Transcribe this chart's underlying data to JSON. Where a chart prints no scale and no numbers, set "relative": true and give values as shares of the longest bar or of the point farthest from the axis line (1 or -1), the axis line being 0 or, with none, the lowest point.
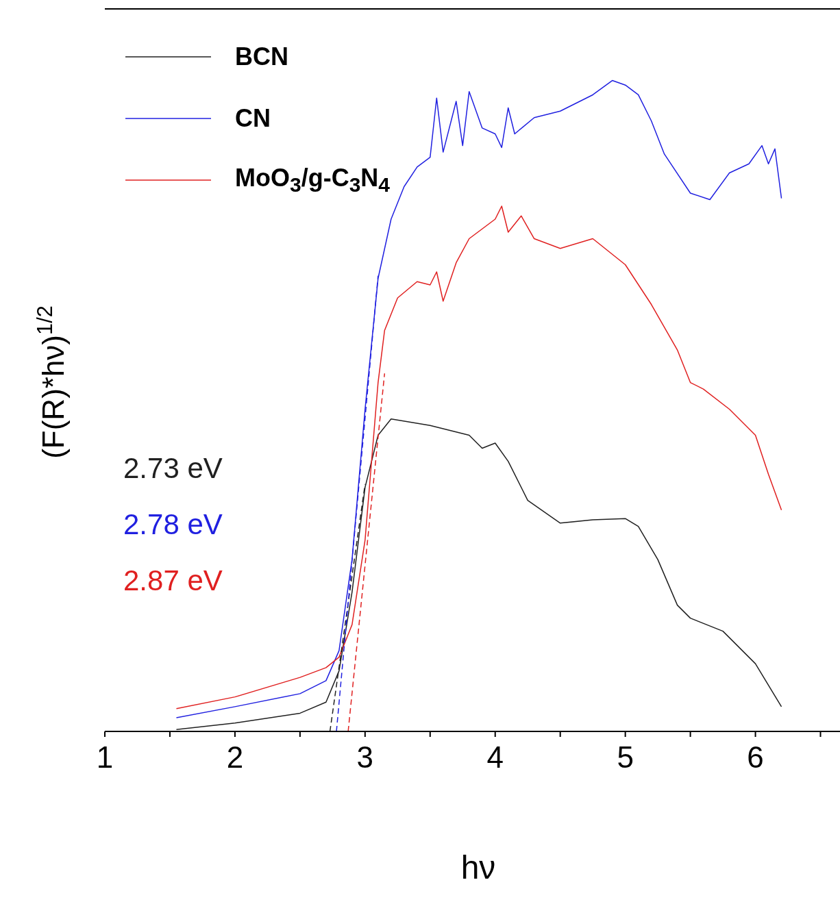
{
  "chart_data": {
    "type": "line",
    "relative": true,
    "xlabel": "hν",
    "ylabel": "(F(R)*hν)$^{1/2}$",
    "xlim": [
      1,
      6.65
    ],
    "xticks": [
      1,
      {
        "value": 1.5,
        "label": null
      },
      2,
      {
        "value": 2.5,
        "label": null
      },
      3,
      {
        "value": 3.5,
        "label": null
      },
      4,
      {
        "value": 4.5,
        "label": null
      },
      5,
      {
        "value": 5.5,
        "label": null
      },
      6,
      {
        "value": 6.5,
        "label": null
      }
    ],
    "legend": "top left",
    "marker": "none",
    "line_style": "solid",
    "annotations": [
      "2.73 eV",
      "2.78 eV",
      "2.87 eV"
    ],
    "series": [
      {
        "name": "BCN",
        "color": "#202020",
        "x": [
          1.55,
          2,
          2.5,
          2.7,
          2.8,
          2.9,
          3,
          3.1,
          3.2,
          3.5,
          3.8,
          3.9,
          4,
          4.1,
          4.25,
          4.5,
          4.75,
          5,
          5.1,
          5.25,
          5.4,
          5.5,
          5.75,
          6,
          6.2
        ],
        "values": [
          0.003,
          0.013,
          0.028,
          0.045,
          0.093,
          0.214,
          0.375,
          0.455,
          0.48,
          0.47,
          0.455,
          0.435,
          0.443,
          0.415,
          0.355,
          0.32,
          0.325,
          0.327,
          0.315,
          0.264,
          0.194,
          0.174,
          0.154,
          0.104,
          0.038
        ]
      },
      {
        "name": "CN",
        "color": "#2020e0",
        "x": [
          1.55,
          2,
          2.5,
          2.7,
          2.8,
          2.9,
          3,
          3.1,
          3.2,
          3.3,
          3.4,
          3.5,
          3.55,
          3.6,
          3.7,
          3.75,
          3.8,
          3.9,
          4,
          4.05,
          4.1,
          4.15,
          4.3,
          4.5,
          4.75,
          4.9,
          5,
          5.1,
          5.2,
          5.3,
          5.5,
          5.65,
          5.8,
          5.95,
          6.05,
          6.1,
          6.15,
          6.2
        ],
        "values": [
          0.021,
          0.038,
          0.058,
          0.078,
          0.124,
          0.264,
          0.495,
          0.696,
          0.787,
          0.837,
          0.867,
          0.882,
          0.973,
          0.89,
          0.968,
          0.9,
          0.983,
          0.927,
          0.918,
          0.897,
          0.958,
          0.918,
          0.943,
          0.953,
          0.978,
          1,
          0.993,
          0.978,
          0.938,
          0.887,
          0.827,
          0.817,
          0.858,
          0.872,
          0.9,
          0.872,
          0.895,
          0.819
        ]
      },
      {
        "name": "MoO$_{3}$/g-C$_{3}$N$_{4}$",
        "color": "#e02020",
        "x": [
          1.55,
          2,
          2.5,
          2.7,
          2.8,
          2.9,
          3,
          3.05,
          3.1,
          3.15,
          3.25,
          3.4,
          3.5,
          3.55,
          3.6,
          3.7,
          3.8,
          3.9,
          4,
          4.05,
          4.1,
          4.2,
          4.3,
          4.5,
          4.75,
          5,
          5.2,
          5.4,
          5.5,
          5.6,
          5.8,
          6,
          6.1,
          6.2
        ],
        "values": [
          0.035,
          0.053,
          0.083,
          0.098,
          0.114,
          0.164,
          0.294,
          0.415,
          0.536,
          0.616,
          0.666,
          0.691,
          0.686,
          0.706,
          0.661,
          0.72,
          0.757,
          0.772,
          0.787,
          0.807,
          0.767,
          0.792,
          0.757,
          0.742,
          0.757,
          0.717,
          0.656,
          0.586,
          0.536,
          0.526,
          0.495,
          0.455,
          0.395,
          0.34
        ]
      },
      {
        "type": "line",
        "line_style": "dashed",
        "color": "#202020",
        "x": [
          2.73,
          3.0
        ],
        "values": [
          0,
          0.38
        ]
      },
      {
        "type": "line",
        "line_style": "dashed",
        "color": "#2020e0",
        "x": [
          2.78,
          3.1
        ],
        "values": [
          0,
          0.7
        ]
      },
      {
        "type": "line",
        "line_style": "dashed",
        "color": "#e02020",
        "x": [
          2.87,
          3.15
        ],
        "values": [
          0,
          0.55
        ]
      }
    ]
  }
}
